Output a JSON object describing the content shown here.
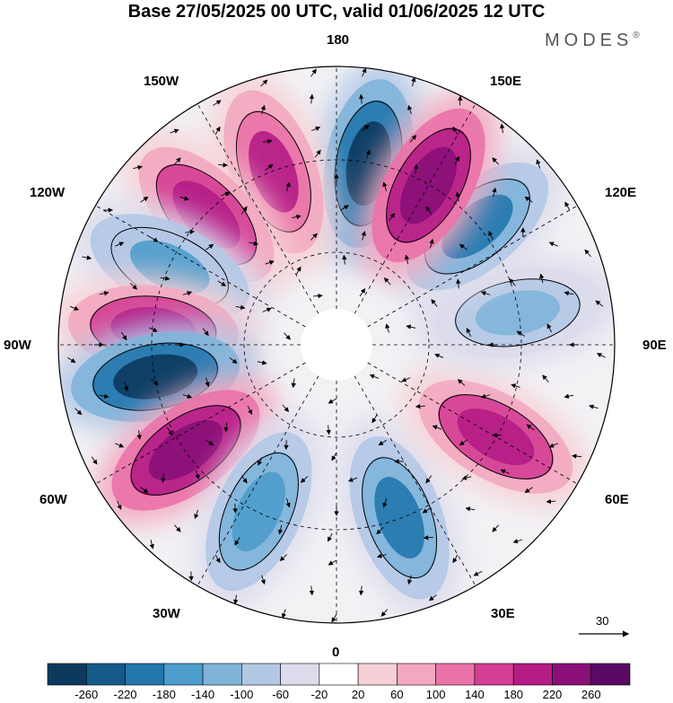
{
  "title": "Base 27/05/2025 00 UTC, valid 01/06/2025 12 UTC",
  "brand": "MODES",
  "brand_mark": "®",
  "map": {
    "projection": "north-polar-stereographic",
    "longitude_labels": {
      "n180": "180",
      "w150": "150W",
      "e150": "150E",
      "w120": "120W",
      "e120": "120E",
      "w90": "90W",
      "e90": "90E",
      "w60": "60W",
      "e60": "60E",
      "w30": "30W",
      "e30": "30E",
      "zero": "0"
    },
    "reference_vector": "30",
    "anomaly_centers": [
      {
        "lon": 170,
        "sign": "negative",
        "strength": -260
      },
      {
        "lon": -160,
        "sign": "positive",
        "strength": 200
      },
      {
        "lon": -135,
        "sign": "positive",
        "strength": 220
      },
      {
        "lon": -115,
        "sign": "negative",
        "strength": -140
      },
      {
        "lon": -95,
        "sign": "positive",
        "strength": 220
      },
      {
        "lon": -80,
        "sign": "negative",
        "strength": -260
      },
      {
        "lon": -55,
        "sign": "positive",
        "strength": 260
      },
      {
        "lon": -25,
        "sign": "negative",
        "strength": -160
      },
      {
        "lon": 20,
        "sign": "negative",
        "strength": -180
      },
      {
        "lon": 60,
        "sign": "positive",
        "strength": 220
      },
      {
        "lon": 100,
        "sign": "negative",
        "strength": -120
      },
      {
        "lon": 130,
        "sign": "negative",
        "strength": -180
      },
      {
        "lon": 150,
        "sign": "positive",
        "strength": 260
      }
    ]
  },
  "colorbar": {
    "ticks": [
      "-260",
      "-220",
      "-180",
      "-140",
      "-100",
      "-60",
      "-20",
      "20",
      "60",
      "100",
      "140",
      "180",
      "220",
      "260"
    ],
    "colors": [
      "#0b3a5e",
      "#135a88",
      "#2277ad",
      "#4d9ccb",
      "#80b4d9",
      "#b3c8e5",
      "#dcdcec",
      "#ffffff",
      "#f6d0d6",
      "#f3a8c0",
      "#ea72a8",
      "#d43e94",
      "#b51c86",
      "#8a0f78",
      "#5a0a62"
    ]
  }
}
